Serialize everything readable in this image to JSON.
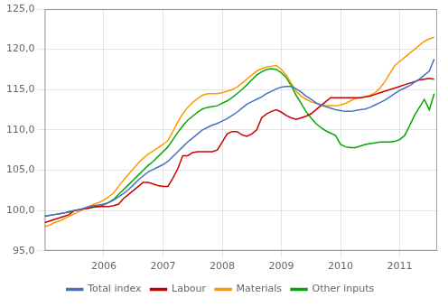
{
  "chart_data": {
    "type": "line",
    "x": [
      2005.0,
      2005.0833333333333,
      2005.1666666666667,
      2005.25,
      2005.3333333333333,
      2005.4166666666667,
      2005.5,
      2005.5833333333333,
      2005.6666666666667,
      2005.75,
      2005.8333333333333,
      2005.9166666666667,
      2006.0,
      2006.0833333333333,
      2006.1666666666667,
      2006.25,
      2006.3333333333333,
      2006.4166666666667,
      2006.5,
      2006.5833333333333,
      2006.6666666666667,
      2006.75,
      2006.8333333333333,
      2006.9166666666667,
      2007.0,
      2007.0833333333333,
      2007.1666666666667,
      2007.25,
      2007.3333333333333,
      2007.4166666666667,
      2007.5,
      2007.5833333333333,
      2007.6666666666667,
      2007.75,
      2007.8333333333333,
      2007.9166666666667,
      2008.0,
      2008.0833333333333,
      2008.1666666666667,
      2008.25,
      2008.3333333333333,
      2008.4166666666667,
      2008.5,
      2008.5833333333333,
      2008.6666666666667,
      2008.75,
      2008.8333333333333,
      2008.9166666666667,
      2009.0,
      2009.0833333333333,
      2009.1666666666667,
      2009.25,
      2009.3333333333333,
      2009.4166666666667,
      2009.5,
      2009.5833333333333,
      2009.6666666666667,
      2009.75,
      2009.8333333333333,
      2009.9166666666667,
      2010.0,
      2010.0833333333333,
      2010.1666666666667,
      2010.25,
      2010.3333333333333,
      2010.4166666666667,
      2010.5,
      2010.5833333333333,
      2010.6666666666667,
      2010.75,
      2010.8333333333333,
      2010.9166666666667,
      2011.0,
      2011.0833333333333,
      2011.1666666666667,
      2011.25,
      2011.3333333333333,
      2011.4166666666667,
      2011.5,
      2011.5833333333333
    ],
    "series": [
      {
        "name": "Total index",
        "color": "#4472C4",
        "values": [
          99.3,
          99.4,
          99.5,
          99.6,
          99.7,
          99.9,
          100.0,
          100.1,
          100.3,
          100.5,
          100.6,
          100.7,
          100.8,
          101.0,
          101.3,
          101.7,
          102.1,
          102.6,
          103.2,
          103.8,
          104.3,
          104.8,
          105.1,
          105.4,
          105.7,
          106.1,
          106.7,
          107.3,
          107.9,
          108.5,
          109.0,
          109.5,
          110.0,
          110.3,
          110.6,
          110.8,
          111.1,
          111.4,
          111.8,
          112.2,
          112.7,
          113.2,
          113.5,
          113.8,
          114.1,
          114.5,
          114.8,
          115.1,
          115.3,
          115.4,
          115.4,
          115.1,
          114.7,
          114.2,
          113.8,
          113.4,
          113.1,
          112.9,
          112.7,
          112.5,
          112.4,
          112.3,
          112.3,
          112.4,
          112.5,
          112.6,
          112.8,
          113.1,
          113.4,
          113.7,
          114.1,
          114.5,
          114.9,
          115.2,
          115.5,
          115.9,
          116.3,
          116.8,
          117.3,
          118.8
        ]
      },
      {
        "name": "Labour",
        "color": "#CC0000",
        "values": [
          98.5,
          98.7,
          98.9,
          99.1,
          99.3,
          99.5,
          100.0,
          100.1,
          100.2,
          100.3,
          100.5,
          100.5,
          100.5,
          100.5,
          100.6,
          100.8,
          101.5,
          102.0,
          102.5,
          103.0,
          103.5,
          103.5,
          103.3,
          103.1,
          103.0,
          103.0,
          104.0,
          105.2,
          106.8,
          106.8,
          107.2,
          107.3,
          107.3,
          107.3,
          107.3,
          107.5,
          108.5,
          109.5,
          109.8,
          109.8,
          109.4,
          109.2,
          109.5,
          110.0,
          111.5,
          112.0,
          112.3,
          112.5,
          112.2,
          111.8,
          111.5,
          111.3,
          111.5,
          111.7,
          112.0,
          112.5,
          113.0,
          113.5,
          114.0,
          114.0,
          114.0,
          114.0,
          114.0,
          114.0,
          114.0,
          114.1,
          114.2,
          114.4,
          114.6,
          114.8,
          115.0,
          115.2,
          115.4,
          115.6,
          115.8,
          116.0,
          116.2,
          116.3,
          116.4,
          116.3
        ]
      },
      {
        "name": "Materials",
        "color": "#FF9900",
        "values": [
          98.0,
          98.2,
          98.5,
          98.7,
          99.0,
          99.3,
          99.6,
          99.9,
          100.2,
          100.5,
          100.8,
          101.0,
          101.3,
          101.7,
          102.2,
          103.0,
          103.8,
          104.5,
          105.2,
          105.9,
          106.5,
          107.0,
          107.4,
          107.8,
          108.2,
          108.7,
          109.8,
          111.0,
          112.0,
          112.8,
          113.4,
          113.9,
          114.3,
          114.5,
          114.5,
          114.5,
          114.6,
          114.8,
          115.0,
          115.3,
          115.8,
          116.3,
          116.8,
          117.3,
          117.6,
          117.8,
          117.9,
          118.0,
          117.5,
          116.8,
          115.8,
          114.8,
          114.2,
          113.8,
          113.5,
          113.3,
          113.1,
          113.0,
          113.0,
          113.0,
          113.1,
          113.3,
          113.6,
          113.9,
          114.0,
          114.1,
          114.3,
          114.6,
          115.2,
          116.0,
          117.0,
          118.0,
          118.5,
          119.0,
          119.5,
          120.0,
          120.5,
          121.0,
          121.3,
          121.5
        ]
      },
      {
        "name": "Other inputs",
        "color": "#00AA00",
        "values": [
          99.3,
          99.4,
          99.5,
          99.6,
          99.7,
          99.8,
          100.0,
          100.1,
          100.2,
          100.3,
          100.4,
          100.5,
          100.7,
          101.0,
          101.4,
          102.0,
          102.6,
          103.2,
          103.8,
          104.4,
          105.0,
          105.6,
          106.1,
          106.7,
          107.3,
          107.9,
          108.8,
          109.7,
          110.5,
          111.2,
          111.7,
          112.2,
          112.6,
          112.8,
          112.9,
          113.0,
          113.3,
          113.6,
          114.0,
          114.5,
          115.0,
          115.6,
          116.2,
          116.8,
          117.2,
          117.5,
          117.6,
          117.5,
          117.1,
          116.5,
          115.5,
          114.3,
          113.3,
          112.3,
          111.5,
          110.8,
          110.3,
          109.9,
          109.6,
          109.3,
          108.2,
          107.9,
          107.8,
          107.8,
          108.0,
          108.2,
          108.3,
          108.4,
          108.5,
          108.5,
          108.5,
          108.6,
          108.8,
          109.3,
          110.5,
          111.8,
          112.8,
          113.8,
          112.5,
          114.5
        ]
      }
    ],
    "xlim": [
      2005.0,
      2011.6333333333332
    ],
    "xticks": [
      2006,
      2007,
      2008,
      2009,
      2010,
      2011
    ],
    "ylim": [
      95.0,
      125.0
    ],
    "yticks": [
      {
        "value": 95.0,
        "label": "95,0"
      },
      {
        "value": 100.0,
        "label": "100,0"
      },
      {
        "value": 105.0,
        "label": "105,0"
      },
      {
        "value": 110.0,
        "label": "110,0"
      },
      {
        "value": 115.0,
        "label": "115,0"
      },
      {
        "value": 120.0,
        "label": "120,0"
      },
      {
        "value": 125.0,
        "label": "125,0"
      }
    ],
    "grid": true,
    "legend": "bottom"
  }
}
